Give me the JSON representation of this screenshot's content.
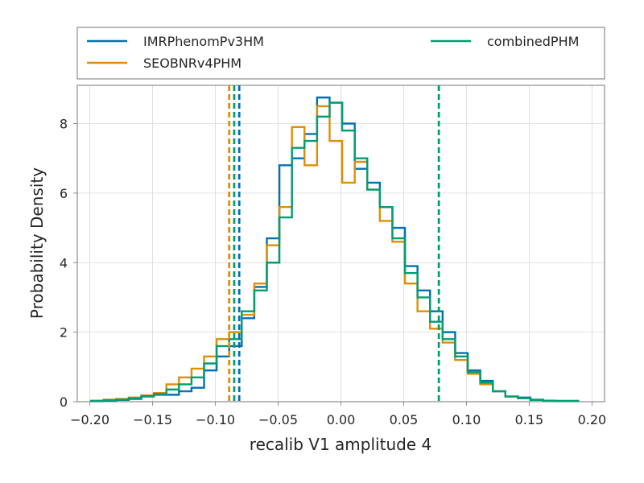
{
  "chart_data": {
    "type": "histogram",
    "title": "",
    "xlabel": "recalib V1 amplitude 4",
    "ylabel": "Probability Density",
    "xlim": [
      -0.21,
      0.21
    ],
    "ylim": [
      0,
      9.1
    ],
    "xticks": [
      -0.2,
      -0.15,
      -0.1,
      -0.05,
      0.0,
      0.05,
      0.1,
      0.15,
      0.2
    ],
    "xtick_labels": [
      "−0.20",
      "−0.15",
      "−0.10",
      "−0.05",
      "0.00",
      "0.05",
      "0.10",
      "0.15",
      "0.20"
    ],
    "yticks": [
      0,
      2,
      4,
      6,
      8
    ],
    "ytick_labels": [
      "0",
      "2",
      "4",
      "6",
      "8"
    ],
    "grid": true,
    "legend": {
      "placement": "top, above plot",
      "columns": 2
    },
    "series": [
      {
        "name": "IMRPhenomPv3HM",
        "color": "#0072b2",
        "bin_edges": [
          -0.199,
          -0.189,
          -0.179,
          -0.169,
          -0.159,
          -0.149,
          -0.139,
          -0.129,
          -0.119,
          -0.109,
          -0.099,
          -0.089,
          -0.079,
          -0.069,
          -0.059,
          -0.049,
          -0.039,
          -0.029,
          -0.019,
          -0.009,
          0.001,
          0.011,
          0.021,
          0.031,
          0.041,
          0.051,
          0.061,
          0.071,
          0.081,
          0.091,
          0.101,
          0.111,
          0.121,
          0.131,
          0.141,
          0.151,
          0.161,
          0.171,
          0.189
        ],
        "densities": [
          0.02,
          0.03,
          0.05,
          0.08,
          0.15,
          0.2,
          0.2,
          0.3,
          0.4,
          0.9,
          1.3,
          1.6,
          2.4,
          3.3,
          4.7,
          6.8,
          7.0,
          7.7,
          8.75,
          8.6,
          8.0,
          6.7,
          6.3,
          5.6,
          5.0,
          3.9,
          3.2,
          2.6,
          2.0,
          1.4,
          0.9,
          0.6,
          0.3,
          0.15,
          0.12,
          0.06,
          0.03,
          0.02
        ]
      },
      {
        "name": "SEOBNRv4PHM",
        "color": "#de8f05",
        "bin_edges": [
          -0.199,
          -0.189,
          -0.179,
          -0.169,
          -0.159,
          -0.149,
          -0.139,
          -0.129,
          -0.119,
          -0.109,
          -0.099,
          -0.089,
          -0.079,
          -0.069,
          -0.059,
          -0.049,
          -0.039,
          -0.029,
          -0.019,
          -0.009,
          0.001,
          0.011,
          0.021,
          0.031,
          0.041,
          0.051,
          0.061,
          0.071,
          0.081,
          0.091,
          0.101,
          0.111,
          0.121,
          0.131,
          0.141,
          0.151,
          0.161,
          0.171,
          0.189
        ],
        "densities": [
          0.03,
          0.06,
          0.08,
          0.12,
          0.18,
          0.25,
          0.5,
          0.7,
          0.95,
          1.3,
          1.8,
          2.0,
          2.5,
          3.4,
          4.5,
          5.6,
          7.9,
          6.8,
          8.5,
          7.5,
          6.3,
          6.9,
          6.1,
          5.2,
          4.6,
          3.4,
          2.6,
          2.1,
          1.7,
          1.2,
          0.8,
          0.5,
          0.3,
          0.15,
          0.1,
          0.05,
          0.03,
          0.02
        ]
      },
      {
        "name": "combinedPHM",
        "color": "#029e73",
        "bin_edges": [
          -0.199,
          -0.189,
          -0.179,
          -0.169,
          -0.159,
          -0.149,
          -0.139,
          -0.129,
          -0.119,
          -0.109,
          -0.099,
          -0.089,
          -0.079,
          -0.069,
          -0.059,
          -0.049,
          -0.039,
          -0.029,
          -0.019,
          -0.009,
          0.001,
          0.011,
          0.021,
          0.031,
          0.041,
          0.051,
          0.061,
          0.071,
          0.081,
          0.091,
          0.101,
          0.111,
          0.121,
          0.131,
          0.141,
          0.151,
          0.161,
          0.171,
          0.189
        ],
        "densities": [
          0.02,
          0.04,
          0.06,
          0.1,
          0.16,
          0.22,
          0.35,
          0.5,
          0.7,
          1.1,
          1.6,
          1.8,
          2.6,
          3.2,
          4.0,
          5.3,
          7.3,
          7.5,
          8.2,
          8.6,
          7.8,
          7.0,
          6.1,
          5.6,
          4.7,
          3.7,
          3.0,
          2.3,
          1.8,
          1.3,
          0.85,
          0.55,
          0.3,
          0.15,
          0.1,
          0.05,
          0.03,
          0.02
        ]
      }
    ],
    "vlines": [
      {
        "series": "IMRPhenomPv3HM",
        "x": -0.081,
        "color": "#0072b2",
        "style": "dashed"
      },
      {
        "series": "SEOBNRv4PHM",
        "x": -0.089,
        "color": "#de8f05",
        "style": "dashed"
      },
      {
        "series": "combinedPHM",
        "x": -0.085,
        "color": "#029e73",
        "style": "dashed"
      },
      {
        "series": "combinedPHM",
        "x": 0.078,
        "color": "#029e73",
        "style": "dashed"
      }
    ]
  }
}
